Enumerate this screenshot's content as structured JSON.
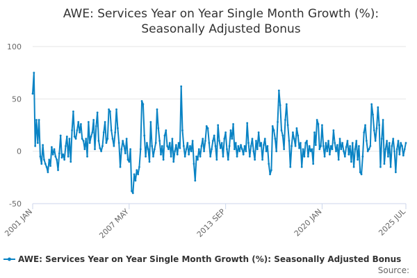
{
  "chart_data": {
    "type": "line",
    "title": "AWE: Services Year on Year Single Month Growth (%): Seasonally Adjusted Bonus",
    "title_lines": [
      "AWE: Services Year on Year Single Month Growth (%):",
      "Seasonally Adjusted Bonus"
    ],
    "xlabel": "",
    "ylabel": "",
    "ylim": [
      -50,
      100
    ],
    "yticks": [
      -50,
      0,
      50,
      100
    ],
    "xlim": [
      "2001-01",
      "2025-07"
    ],
    "xticks": [
      {
        "label": "2001 JAN",
        "date": "2001-01"
      },
      {
        "label": "2007 MAY",
        "date": "2007-05"
      },
      {
        "label": "2013 SEP",
        "date": "2013-09"
      },
      {
        "label": "2020 JAN",
        "date": "2020-01"
      },
      {
        "label": "2025 JUL",
        "date": "2025-07"
      }
    ],
    "grid": true,
    "legend_placement": "bottom",
    "series_color": "#0a83c4",
    "series": [
      {
        "name": "AWE: Services Year on Year Single Month Growth (%): Seasonally Adjusted Bonus",
        "points": [
          [
            "2001-01",
            55
          ],
          [
            "2001-02",
            75
          ],
          [
            "2001-03",
            5
          ],
          [
            "2001-04",
            30
          ],
          [
            "2001-05",
            8
          ],
          [
            "2001-06",
            30
          ],
          [
            "2001-07",
            -5
          ],
          [
            "2001-08",
            -12
          ],
          [
            "2001-09",
            6
          ],
          [
            "2001-10",
            -8
          ],
          [
            "2001-11",
            -12
          ],
          [
            "2001-12",
            -15
          ],
          [
            "2002-01",
            -20
          ],
          [
            "2002-02",
            -8
          ],
          [
            "2002-03",
            -14
          ],
          [
            "2002-04",
            4
          ],
          [
            "2002-05",
            -3
          ],
          [
            "2002-06",
            2
          ],
          [
            "2002-07",
            -5
          ],
          [
            "2002-08",
            -8
          ],
          [
            "2002-09",
            -18
          ],
          [
            "2002-10",
            -2
          ],
          [
            "2002-11",
            15
          ],
          [
            "2002-12",
            -6
          ],
          [
            "2003-01",
            -3
          ],
          [
            "2003-02",
            -8
          ],
          [
            "2003-03",
            5
          ],
          [
            "2003-04",
            14
          ],
          [
            "2003-05",
            -5
          ],
          [
            "2003-06",
            12
          ],
          [
            "2003-07",
            -10
          ],
          [
            "2003-08",
            20
          ],
          [
            "2003-09",
            38
          ],
          [
            "2003-10",
            14
          ],
          [
            "2003-11",
            12
          ],
          [
            "2003-12",
            20
          ],
          [
            "2004-01",
            28
          ],
          [
            "2004-02",
            18
          ],
          [
            "2004-03",
            26
          ],
          [
            "2004-04",
            12
          ],
          [
            "2004-05",
            10
          ],
          [
            "2004-06",
            2
          ],
          [
            "2004-07",
            12
          ],
          [
            "2004-08",
            -5
          ],
          [
            "2004-09",
            28
          ],
          [
            "2004-10",
            8
          ],
          [
            "2004-11",
            14
          ],
          [
            "2004-12",
            18
          ],
          [
            "2005-01",
            30
          ],
          [
            "2005-02",
            2
          ],
          [
            "2005-03",
            24
          ],
          [
            "2005-04",
            37
          ],
          [
            "2005-05",
            10
          ],
          [
            "2005-06",
            3
          ],
          [
            "2005-07",
            0
          ],
          [
            "2005-08",
            5
          ],
          [
            "2005-09",
            18
          ],
          [
            "2005-10",
            28
          ],
          [
            "2005-11",
            8
          ],
          [
            "2005-12",
            12
          ],
          [
            "2006-01",
            40
          ],
          [
            "2006-02",
            38
          ],
          [
            "2006-03",
            20
          ],
          [
            "2006-04",
            12
          ],
          [
            "2006-05",
            5
          ],
          [
            "2006-06",
            18
          ],
          [
            "2006-07",
            40
          ],
          [
            "2006-08",
            22
          ],
          [
            "2006-09",
            8
          ],
          [
            "2006-10",
            -15
          ],
          [
            "2006-11",
            2
          ],
          [
            "2006-12",
            10
          ],
          [
            "2007-01",
            5
          ],
          [
            "2007-02",
            -2
          ],
          [
            "2007-03",
            12
          ],
          [
            "2007-04",
            -8
          ],
          [
            "2007-05",
            -10
          ],
          [
            "2007-06",
            2
          ],
          [
            "2007-07",
            -38
          ],
          [
            "2007-08",
            -40
          ],
          [
            "2007-09",
            -22
          ],
          [
            "2007-10",
            -28
          ],
          [
            "2007-11",
            -18
          ],
          [
            "2007-12",
            -22
          ],
          [
            "2008-01",
            -15
          ],
          [
            "2008-02",
            2
          ],
          [
            "2008-03",
            48
          ],
          [
            "2008-04",
            45
          ],
          [
            "2008-05",
            15
          ],
          [
            "2008-06",
            -5
          ],
          [
            "2008-07",
            8
          ],
          [
            "2008-08",
            2
          ],
          [
            "2008-09",
            -10
          ],
          [
            "2008-10",
            28
          ],
          [
            "2008-11",
            5
          ],
          [
            "2008-12",
            -5
          ],
          [
            "2009-01",
            2
          ],
          [
            "2009-02",
            8
          ],
          [
            "2009-03",
            40
          ],
          [
            "2009-04",
            22
          ],
          [
            "2009-05",
            10
          ],
          [
            "2009-06",
            -3
          ],
          [
            "2009-07",
            5
          ],
          [
            "2009-08",
            -8
          ],
          [
            "2009-09",
            15
          ],
          [
            "2009-10",
            20
          ],
          [
            "2009-11",
            5
          ],
          [
            "2009-12",
            2
          ],
          [
            "2010-01",
            8
          ],
          [
            "2010-02",
            -5
          ],
          [
            "2010-03",
            12
          ],
          [
            "2010-04",
            -10
          ],
          [
            "2010-05",
            0
          ],
          [
            "2010-06",
            6
          ],
          [
            "2010-07",
            -3
          ],
          [
            "2010-08",
            8
          ],
          [
            "2010-09",
            3
          ],
          [
            "2010-10",
            62
          ],
          [
            "2010-11",
            20
          ],
          [
            "2010-12",
            5
          ],
          [
            "2011-01",
            -5
          ],
          [
            "2011-02",
            2
          ],
          [
            "2011-03",
            8
          ],
          [
            "2011-04",
            -3
          ],
          [
            "2011-05",
            5
          ],
          [
            "2011-06",
            0
          ],
          [
            "2011-07",
            10
          ],
          [
            "2011-08",
            -12
          ],
          [
            "2011-09",
            -28
          ],
          [
            "2011-10",
            -5
          ],
          [
            "2011-11",
            -8
          ],
          [
            "2011-12",
            2
          ],
          [
            "2012-01",
            -5
          ],
          [
            "2012-02",
            5
          ],
          [
            "2012-03",
            12
          ],
          [
            "2012-04",
            0
          ],
          [
            "2012-05",
            10
          ],
          [
            "2012-06",
            24
          ],
          [
            "2012-07",
            22
          ],
          [
            "2012-08",
            8
          ],
          [
            "2012-09",
            -5
          ],
          [
            "2012-10",
            2
          ],
          [
            "2012-11",
            10
          ],
          [
            "2012-12",
            15
          ],
          [
            "2013-01",
            5
          ],
          [
            "2013-02",
            -8
          ],
          [
            "2013-03",
            25
          ],
          [
            "2013-04",
            10
          ],
          [
            "2013-05",
            3
          ],
          [
            "2013-06",
            8
          ],
          [
            "2013-07",
            -5
          ],
          [
            "2013-08",
            12
          ],
          [
            "2013-09",
            18
          ],
          [
            "2013-10",
            2
          ],
          [
            "2013-11",
            -8
          ],
          [
            "2013-12",
            5
          ],
          [
            "2014-01",
            20
          ],
          [
            "2014-02",
            12
          ],
          [
            "2014-03",
            26
          ],
          [
            "2014-04",
            2
          ],
          [
            "2014-05",
            8
          ],
          [
            "2014-06",
            -5
          ],
          [
            "2014-07",
            5
          ],
          [
            "2014-08",
            0
          ],
          [
            "2014-09",
            6
          ],
          [
            "2014-10",
            2
          ],
          [
            "2014-11",
            -3
          ],
          [
            "2014-12",
            5
          ],
          [
            "2015-01",
            0
          ],
          [
            "2015-02",
            27
          ],
          [
            "2015-03",
            8
          ],
          [
            "2015-04",
            -5
          ],
          [
            "2015-05",
            5
          ],
          [
            "2015-06",
            12
          ],
          [
            "2015-07",
            0
          ],
          [
            "2015-08",
            -8
          ],
          [
            "2015-09",
            10
          ],
          [
            "2015-10",
            2
          ],
          [
            "2015-11",
            18
          ],
          [
            "2015-12",
            5
          ],
          [
            "2016-01",
            8
          ],
          [
            "2016-02",
            -8
          ],
          [
            "2016-03",
            6
          ],
          [
            "2016-04",
            12
          ],
          [
            "2016-05",
            0
          ],
          [
            "2016-06",
            5
          ],
          [
            "2016-07",
            -12
          ],
          [
            "2016-08",
            -22
          ],
          [
            "2016-09",
            -18
          ],
          [
            "2016-10",
            24
          ],
          [
            "2016-11",
            20
          ],
          [
            "2016-12",
            12
          ],
          [
            "2017-01",
            0
          ],
          [
            "2017-02",
            28
          ],
          [
            "2017-03",
            58
          ],
          [
            "2017-04",
            44
          ],
          [
            "2017-05",
            20
          ],
          [
            "2017-06",
            15
          ],
          [
            "2017-07",
            2
          ],
          [
            "2017-08",
            30
          ],
          [
            "2017-09",
            45
          ],
          [
            "2017-10",
            25
          ],
          [
            "2017-11",
            10
          ],
          [
            "2017-12",
            -15
          ],
          [
            "2018-01",
            5
          ],
          [
            "2018-02",
            18
          ],
          [
            "2018-03",
            12
          ],
          [
            "2018-04",
            5
          ],
          [
            "2018-05",
            22
          ],
          [
            "2018-06",
            15
          ],
          [
            "2018-07",
            3
          ],
          [
            "2018-08",
            8
          ],
          [
            "2018-09",
            -15
          ],
          [
            "2018-10",
            2
          ],
          [
            "2018-11",
            -5
          ],
          [
            "2018-12",
            8
          ],
          [
            "2019-01",
            10
          ],
          [
            "2019-02",
            -5
          ],
          [
            "2019-03",
            5
          ],
          [
            "2019-04",
            0
          ],
          [
            "2019-05",
            2
          ],
          [
            "2019-06",
            -12
          ],
          [
            "2019-07",
            18
          ],
          [
            "2019-08",
            6
          ],
          [
            "2019-09",
            30
          ],
          [
            "2019-10",
            26
          ],
          [
            "2019-11",
            2
          ],
          [
            "2019-12",
            5
          ],
          [
            "2020-01",
            25
          ],
          [
            "2020-02",
            5
          ],
          [
            "2020-03",
            -5
          ],
          [
            "2020-04",
            8
          ],
          [
            "2020-05",
            0
          ],
          [
            "2020-06",
            10
          ],
          [
            "2020-07",
            -3
          ],
          [
            "2020-08",
            5
          ],
          [
            "2020-09",
            2
          ],
          [
            "2020-10",
            20
          ],
          [
            "2020-11",
            8
          ],
          [
            "2020-12",
            0
          ],
          [
            "2021-01",
            6
          ],
          [
            "2021-02",
            -8
          ],
          [
            "2021-03",
            12
          ],
          [
            "2021-04",
            2
          ],
          [
            "2021-05",
            8
          ],
          [
            "2021-06",
            0
          ],
          [
            "2021-07",
            -5
          ],
          [
            "2021-08",
            4
          ],
          [
            "2021-09",
            10
          ],
          [
            "2021-10",
            -3
          ],
          [
            "2021-11",
            5
          ],
          [
            "2021-12",
            -10
          ],
          [
            "2022-01",
            8
          ],
          [
            "2022-02",
            -15
          ],
          [
            "2022-03",
            2
          ],
          [
            "2022-04",
            10
          ],
          [
            "2022-05",
            -8
          ],
          [
            "2022-06",
            5
          ],
          [
            "2022-07",
            -20
          ],
          [
            "2022-08",
            -22
          ],
          [
            "2022-09",
            -5
          ],
          [
            "2022-10",
            18
          ],
          [
            "2022-11",
            25
          ],
          [
            "2022-12",
            10
          ],
          [
            "2023-01",
            0
          ],
          [
            "2023-02",
            2
          ],
          [
            "2023-03",
            5
          ],
          [
            "2023-04",
            45
          ],
          [
            "2023-05",
            35
          ],
          [
            "2023-06",
            20
          ],
          [
            "2023-07",
            10
          ],
          [
            "2023-08",
            22
          ],
          [
            "2023-09",
            42
          ],
          [
            "2023-10",
            25
          ],
          [
            "2023-11",
            -15
          ],
          [
            "2023-12",
            12
          ],
          [
            "2024-01",
            30
          ],
          [
            "2024-02",
            -12
          ],
          [
            "2024-03",
            2
          ],
          [
            "2024-04",
            10
          ],
          [
            "2024-05",
            -5
          ],
          [
            "2024-06",
            8
          ],
          [
            "2024-07",
            -15
          ],
          [
            "2024-08",
            5
          ],
          [
            "2024-09",
            12
          ],
          [
            "2024-10",
            0
          ],
          [
            "2024-11",
            -20
          ],
          [
            "2024-12",
            2
          ],
          [
            "2025-01",
            10
          ],
          [
            "2025-02",
            -3
          ],
          [
            "2025-03",
            8
          ],
          [
            "2025-04",
            5
          ],
          [
            "2025-05",
            -4
          ],
          [
            "2025-06",
            2
          ],
          [
            "2025-07",
            8
          ]
        ]
      }
    ]
  },
  "legend": {
    "label": "AWE: Services Year on Year Single Month Growth (%): Seasonally Adjusted Bonus"
  },
  "footer": {
    "source_label": "Source:"
  }
}
